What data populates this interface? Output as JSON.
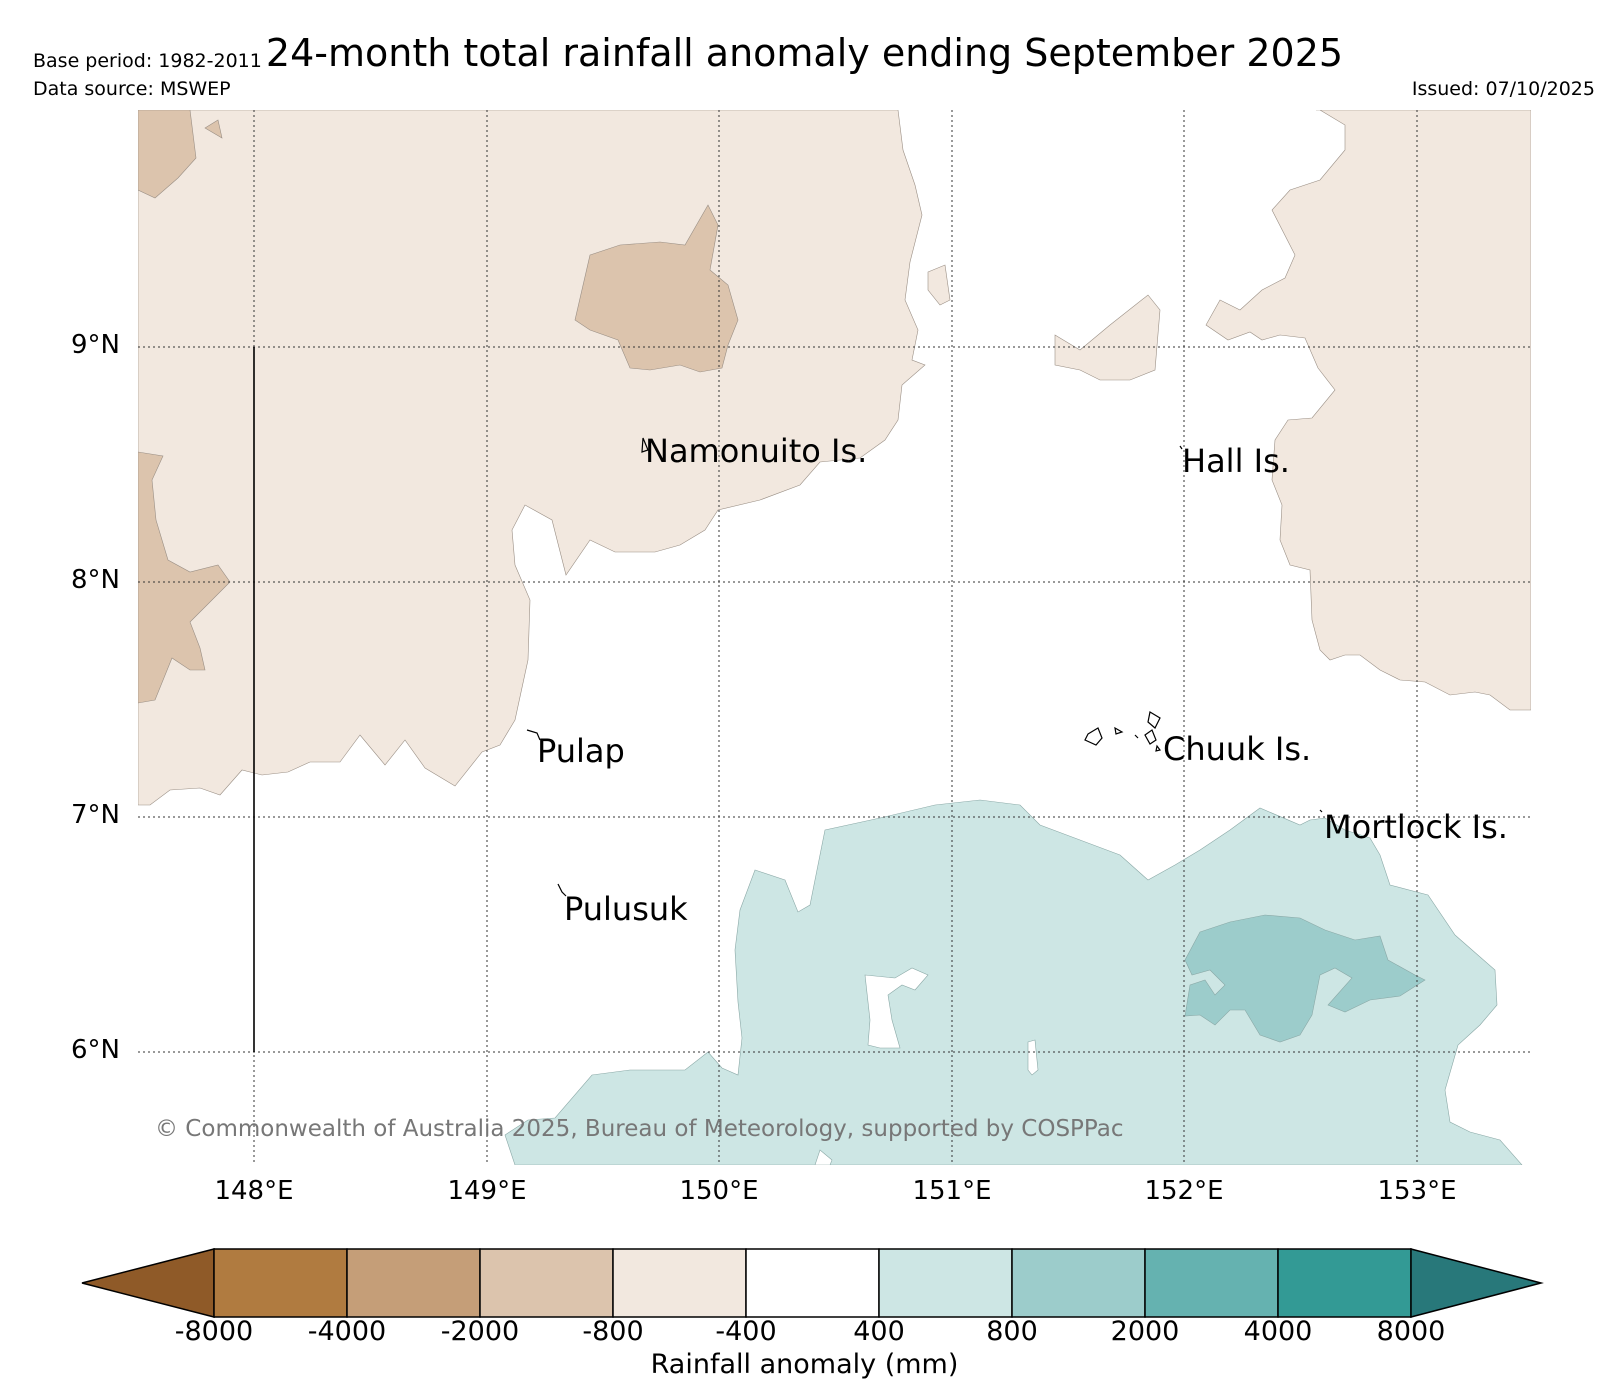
{
  "header": {
    "title": "24-month total rainfall anomaly ending September 2025",
    "base_period": "Base period: 1982-2011",
    "data_source": "Data source: MSWEP",
    "issued": "Issued: 07/10/2025"
  },
  "map": {
    "lat_labels": [
      "9°N",
      "8°N",
      "7°N",
      "6°N"
    ],
    "lon_labels": [
      "148°E",
      "149°E",
      "150°E",
      "151°E",
      "152°E",
      "153°E"
    ],
    "places": [
      "Namonuito Is.",
      "Hall Is.",
      "Pulap",
      "Chuuk Is.",
      "Mortlock Is.",
      "Pulusuk"
    ],
    "copyright": "© Commonwealth of Australia 2025, Bureau of Meteorology, supported by COSPPac"
  },
  "colorbar": {
    "tick_labels": [
      "-8000",
      "-4000",
      "-2000",
      "-800",
      "-400",
      "400",
      "800",
      "2000",
      "4000",
      "8000"
    ],
    "label": "Rainfall anomaly (mm)",
    "colors": [
      "#8f5a28",
      "#b07b40",
      "#c59e78",
      "#dcc4ad",
      "#f2e8df",
      "#ffffff",
      "#cde6e4",
      "#9ccccb",
      "#65b2b0",
      "#339a95",
      "#28787a"
    ]
  }
}
